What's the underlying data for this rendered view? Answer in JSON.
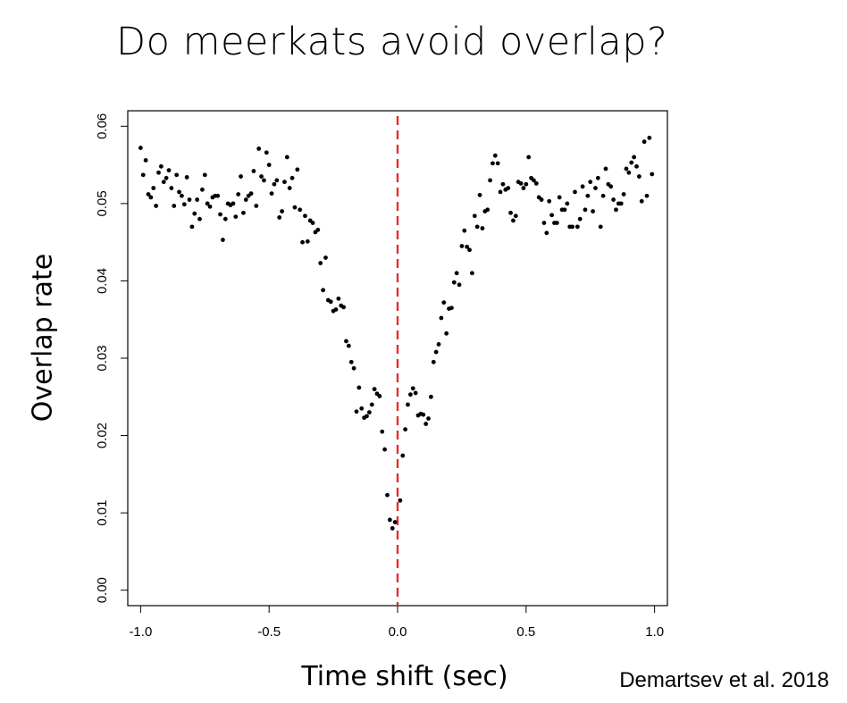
{
  "title": "Do meerkats avoid overlap?",
  "xlabel": "Time shift (sec)",
  "ylabel": "Overlap rate",
  "citation": "Demartsev et al. 2018",
  "chart_data": {
    "type": "scatter",
    "title": "Do meerkats avoid overlap?",
    "xlabel": "Time shift (sec)",
    "ylabel": "Overlap rate",
    "xlim": [
      -1.05,
      1.05
    ],
    "ylim": [
      -0.002,
      0.062
    ],
    "xticks": [
      "-1.0",
      "-0.5",
      "0.0",
      "0.5",
      "1.0"
    ],
    "xtick_values": [
      -1.0,
      -0.5,
      0.0,
      0.5,
      1.0
    ],
    "yticks": [
      "0.00",
      "0.01",
      "0.02",
      "0.03",
      "0.04",
      "0.05",
      "0.06"
    ],
    "ytick_values": [
      0.0,
      0.01,
      0.02,
      0.03,
      0.04,
      0.05,
      0.06
    ],
    "reference_line": {
      "x": 0.0,
      "color": "#e03030",
      "style": "dashed"
    },
    "grid": false,
    "points": [
      [
        -1.0,
        0.0572
      ],
      [
        -0.99,
        0.0537
      ],
      [
        -0.98,
        0.0556
      ],
      [
        -0.97,
        0.0512
      ],
      [
        -0.96,
        0.0508
      ],
      [
        -0.95,
        0.052
      ],
      [
        -0.94,
        0.0497
      ],
      [
        -0.93,
        0.054
      ],
      [
        -0.92,
        0.0548
      ],
      [
        -0.91,
        0.0528
      ],
      [
        -0.9,
        0.0533
      ],
      [
        -0.89,
        0.0543
      ],
      [
        -0.88,
        0.052
      ],
      [
        -0.87,
        0.0497
      ],
      [
        -0.86,
        0.0537
      ],
      [
        -0.85,
        0.0515
      ],
      [
        -0.84,
        0.051
      ],
      [
        -0.83,
        0.0499
      ],
      [
        -0.82,
        0.0534
      ],
      [
        -0.81,
        0.0505
      ],
      [
        -0.8,
        0.047
      ],
      [
        -0.79,
        0.0487
      ],
      [
        -0.78,
        0.0505
      ],
      [
        -0.77,
        0.048
      ],
      [
        -0.76,
        0.0518
      ],
      [
        -0.75,
        0.0537
      ],
      [
        -0.74,
        0.05
      ],
      [
        -0.73,
        0.0496
      ],
      [
        -0.72,
        0.0508
      ],
      [
        -0.71,
        0.051
      ],
      [
        -0.7,
        0.051
      ],
      [
        -0.69,
        0.0486
      ],
      [
        -0.68,
        0.0453
      ],
      [
        -0.67,
        0.048
      ],
      [
        -0.66,
        0.05
      ],
      [
        -0.65,
        0.0498
      ],
      [
        -0.64,
        0.05
      ],
      [
        -0.63,
        0.0483
      ],
      [
        -0.62,
        0.0512
      ],
      [
        -0.61,
        0.0535
      ],
      [
        -0.6,
        0.0488
      ],
      [
        -0.59,
        0.0505
      ],
      [
        -0.58,
        0.051
      ],
      [
        -0.57,
        0.0513
      ],
      [
        -0.56,
        0.0542
      ],
      [
        -0.55,
        0.0497
      ],
      [
        -0.54,
        0.0571
      ],
      [
        -0.53,
        0.0535
      ],
      [
        -0.52,
        0.053
      ],
      [
        -0.51,
        0.0566
      ],
      [
        -0.5,
        0.055
      ],
      [
        -0.49,
        0.0513
      ],
      [
        -0.48,
        0.0525
      ],
      [
        -0.47,
        0.053
      ],
      [
        -0.46,
        0.0482
      ],
      [
        -0.45,
        0.049
      ],
      [
        -0.44,
        0.0528
      ],
      [
        -0.43,
        0.056
      ],
      [
        -0.42,
        0.052
      ],
      [
        -0.41,
        0.0533
      ],
      [
        -0.4,
        0.0495
      ],
      [
        -0.39,
        0.0544
      ],
      [
        -0.38,
        0.0492
      ],
      [
        -0.37,
        0.045
      ],
      [
        -0.36,
        0.0484
      ],
      [
        -0.35,
        0.0451
      ],
      [
        -0.34,
        0.0478
      ],
      [
        -0.33,
        0.0475
      ],
      [
        -0.32,
        0.0463
      ],
      [
        -0.31,
        0.0466
      ],
      [
        -0.3,
        0.0423
      ],
      [
        -0.29,
        0.0388
      ],
      [
        -0.28,
        0.043
      ],
      [
        -0.27,
        0.0375
      ],
      [
        -0.26,
        0.0373
      ],
      [
        -0.25,
        0.0361
      ],
      [
        -0.24,
        0.0363
      ],
      [
        -0.23,
        0.0377
      ],
      [
        -0.22,
        0.0368
      ],
      [
        -0.21,
        0.0366
      ],
      [
        -0.2,
        0.0322
      ],
      [
        -0.19,
        0.0316
      ],
      [
        -0.18,
        0.0295
      ],
      [
        -0.17,
        0.0287
      ],
      [
        -0.16,
        0.0231
      ],
      [
        -0.15,
        0.0262
      ],
      [
        -0.14,
        0.0235
      ],
      [
        -0.13,
        0.0223
      ],
      [
        -0.12,
        0.0225
      ],
      [
        -0.11,
        0.023
      ],
      [
        -0.1,
        0.024
      ],
      [
        -0.09,
        0.026
      ],
      [
        -0.08,
        0.0254
      ],
      [
        -0.07,
        0.0251
      ],
      [
        -0.06,
        0.0205
      ],
      [
        -0.05,
        0.0182
      ],
      [
        -0.04,
        0.0123
      ],
      [
        -0.03,
        0.0091
      ],
      [
        -0.02,
        0.008
      ],
      [
        -0.01,
        0.0088
      ],
      [
        0.01,
        0.0116
      ],
      [
        0.02,
        0.0174
      ],
      [
        0.03,
        0.0208
      ],
      [
        0.04,
        0.024
      ],
      [
        0.05,
        0.0253
      ],
      [
        0.06,
        0.0261
      ],
      [
        0.07,
        0.0255
      ],
      [
        0.08,
        0.0226
      ],
      [
        0.09,
        0.0228
      ],
      [
        0.1,
        0.0227
      ],
      [
        0.11,
        0.0215
      ],
      [
        0.12,
        0.0222
      ],
      [
        0.13,
        0.025
      ],
      [
        0.14,
        0.0295
      ],
      [
        0.15,
        0.0308
      ],
      [
        0.16,
        0.0318
      ],
      [
        0.17,
        0.0352
      ],
      [
        0.18,
        0.0372
      ],
      [
        0.19,
        0.0332
      ],
      [
        0.2,
        0.0364
      ],
      [
        0.21,
        0.0365
      ],
      [
        0.22,
        0.0398
      ],
      [
        0.23,
        0.041
      ],
      [
        0.24,
        0.0395
      ],
      [
        0.25,
        0.0445
      ],
      [
        0.26,
        0.0465
      ],
      [
        0.27,
        0.0444
      ],
      [
        0.28,
        0.044
      ],
      [
        0.29,
        0.041
      ],
      [
        0.3,
        0.0484
      ],
      [
        0.31,
        0.047
      ],
      [
        0.32,
        0.0511
      ],
      [
        0.33,
        0.0468
      ],
      [
        0.34,
        0.049
      ],
      [
        0.35,
        0.0492
      ],
      [
        0.36,
        0.053
      ],
      [
        0.37,
        0.0552
      ],
      [
        0.38,
        0.0562
      ],
      [
        0.39,
        0.0552
      ],
      [
        0.4,
        0.0515
      ],
      [
        0.41,
        0.0525
      ],
      [
        0.42,
        0.0518
      ],
      [
        0.43,
        0.052
      ],
      [
        0.44,
        0.0488
      ],
      [
        0.45,
        0.0478
      ],
      [
        0.46,
        0.0484
      ],
      [
        0.47,
        0.0528
      ],
      [
        0.48,
        0.0526
      ],
      [
        0.49,
        0.052
      ],
      [
        0.5,
        0.0525
      ],
      [
        0.51,
        0.056
      ],
      [
        0.52,
        0.0533
      ],
      [
        0.53,
        0.053
      ],
      [
        0.54,
        0.0526
      ],
      [
        0.55,
        0.0508
      ],
      [
        0.56,
        0.0505
      ],
      [
        0.57,
        0.0475
      ],
      [
        0.58,
        0.0462
      ],
      [
        0.59,
        0.0503
      ],
      [
        0.6,
        0.0485
      ],
      [
        0.61,
        0.0475
      ],
      [
        0.62,
        0.0475
      ],
      [
        0.63,
        0.0508
      ],
      [
        0.64,
        0.0492
      ],
      [
        0.65,
        0.0492
      ],
      [
        0.66,
        0.05
      ],
      [
        0.67,
        0.047
      ],
      [
        0.68,
        0.047
      ],
      [
        0.69,
        0.0515
      ],
      [
        0.7,
        0.047
      ],
      [
        0.71,
        0.048
      ],
      [
        0.72,
        0.0522
      ],
      [
        0.73,
        0.0492
      ],
      [
        0.74,
        0.051
      ],
      [
        0.75,
        0.0528
      ],
      [
        0.76,
        0.049
      ],
      [
        0.77,
        0.052
      ],
      [
        0.78,
        0.0533
      ],
      [
        0.79,
        0.047
      ],
      [
        0.8,
        0.051
      ],
      [
        0.81,
        0.0545
      ],
      [
        0.82,
        0.0525
      ],
      [
        0.83,
        0.0522
      ],
      [
        0.84,
        0.0505
      ],
      [
        0.85,
        0.0492
      ],
      [
        0.86,
        0.05
      ],
      [
        0.87,
        0.05
      ],
      [
        0.88,
        0.0512
      ],
      [
        0.89,
        0.0545
      ],
      [
        0.9,
        0.054
      ],
      [
        0.91,
        0.0553
      ],
      [
        0.92,
        0.056
      ],
      [
        0.93,
        0.0548
      ],
      [
        0.94,
        0.0535
      ],
      [
        0.95,
        0.0503
      ],
      [
        0.96,
        0.058
      ],
      [
        0.97,
        0.051
      ],
      [
        0.98,
        0.0585
      ],
      [
        0.99,
        0.0538
      ]
    ]
  }
}
